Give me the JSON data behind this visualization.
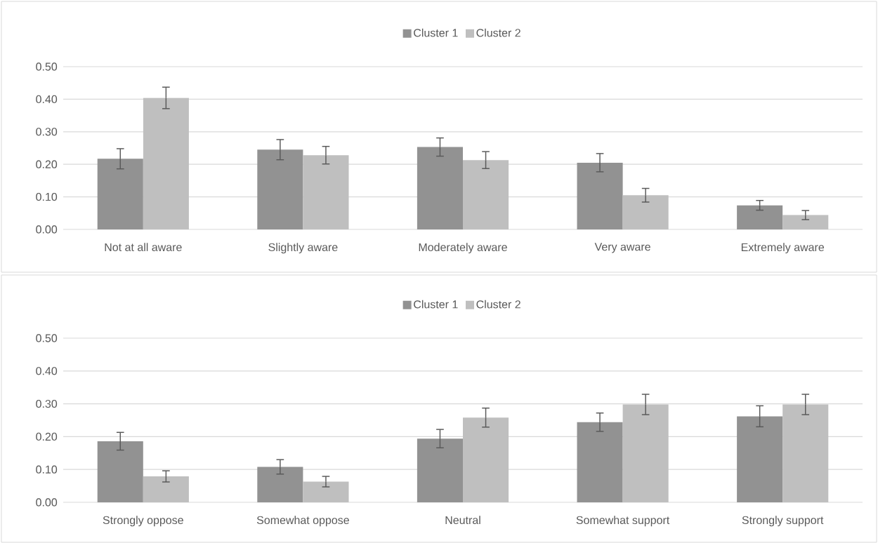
{
  "chart_data": [
    {
      "type": "bar",
      "categories": [
        "Not at all aware",
        "Slightly aware",
        "Moderately aware",
        "Very aware",
        "Extremely aware"
      ],
      "series": [
        {
          "name": "Cluster 1",
          "color": "#929292",
          "values": [
            0.217,
            0.245,
            0.253,
            0.205,
            0.074
          ],
          "errors": [
            0.031,
            0.031,
            0.028,
            0.028,
            0.015
          ]
        },
        {
          "name": "Cluster 2",
          "color": "#bfbfbf",
          "values": [
            0.404,
            0.228,
            0.213,
            0.105,
            0.044
          ],
          "errors": [
            0.033,
            0.027,
            0.026,
            0.021,
            0.014
          ]
        }
      ],
      "ylim": [
        0,
        0.5
      ],
      "yticks": [
        {
          "value": 0,
          "label": "0.00"
        },
        {
          "value": 0.1,
          "label": "0.10"
        },
        {
          "value": 0.2,
          "label": "0.20"
        },
        {
          "value": 0.3,
          "label": "0.30"
        },
        {
          "value": 0.4,
          "label": "0.40"
        },
        {
          "value": 0.5,
          "label": "0.50"
        }
      ],
      "grid": "y",
      "legend": "top"
    },
    {
      "type": "bar",
      "categories": [
        "Strongly oppose",
        "Somewhat oppose",
        "Neutral",
        "Somewhat support",
        "Strongly support"
      ],
      "series": [
        {
          "name": "Cluster 1",
          "color": "#929292",
          "values": [
            0.186,
            0.108,
            0.194,
            0.244,
            0.262
          ],
          "errors": [
            0.027,
            0.022,
            0.028,
            0.028,
            0.032
          ]
        },
        {
          "name": "Cluster 2",
          "color": "#bfbfbf",
          "values": [
            0.079,
            0.063,
            0.258,
            0.298,
            0.298
          ],
          "errors": [
            0.017,
            0.016,
            0.029,
            0.031,
            0.031
          ]
        }
      ],
      "ylim": [
        0,
        0.5
      ],
      "yticks": [
        {
          "value": 0,
          "label": "0.00"
        },
        {
          "value": 0.1,
          "label": "0.10"
        },
        {
          "value": 0.2,
          "label": "0.20"
        },
        {
          "value": 0.3,
          "label": "0.30"
        },
        {
          "value": 0.4,
          "label": "0.40"
        },
        {
          "value": 0.5,
          "label": "0.50"
        }
      ],
      "grid": "y",
      "legend": "top"
    }
  ]
}
